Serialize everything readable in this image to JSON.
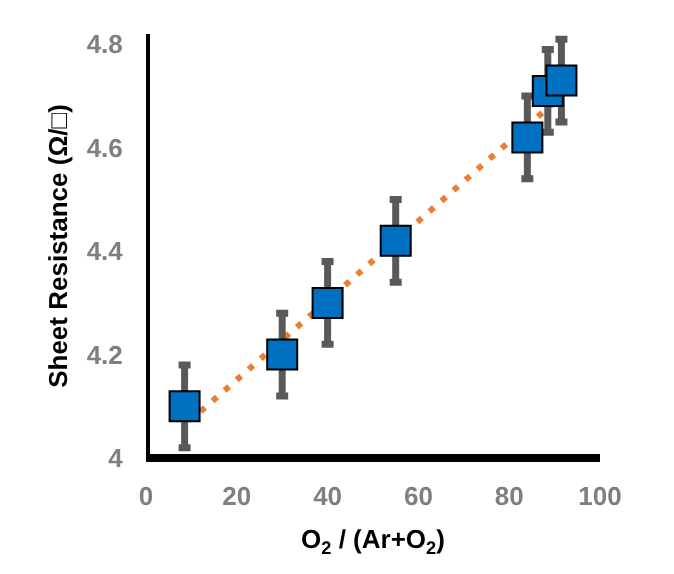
{
  "chart_data": {
    "type": "scatter",
    "xlabel": "O$_{2}$ / (Ar+O$_{2}$)",
    "ylabel": "Sheet Resistance (Ω/□)",
    "x": [
      8.5,
      30,
      40,
      55,
      84,
      88.5,
      91.5
    ],
    "series": [
      {
        "color": "#0070c0",
        "marker": "square",
        "values": [
          4.1,
          4.2,
          4.3,
          4.42,
          4.62,
          4.71,
          4.73
        ],
        "errors": [
          0.08,
          0.08,
          0.08,
          0.08,
          0.08,
          0.08,
          0.08
        ]
      },
      {
        "type": "line",
        "color": "#ed7d31",
        "line_style": "dotted",
        "marker": "none",
        "x": [
          12,
          91.5
        ],
        "values": [
          4.09,
          4.7
        ]
      }
    ],
    "xlim": [
      0,
      100
    ],
    "xticks": [
      0,
      20,
      40,
      60,
      80,
      100
    ],
    "ylim": [
      4,
      4.82
    ],
    "yticks": [
      4,
      4.2,
      4.4,
      4.6,
      4.8
    ],
    "grid": false
  }
}
